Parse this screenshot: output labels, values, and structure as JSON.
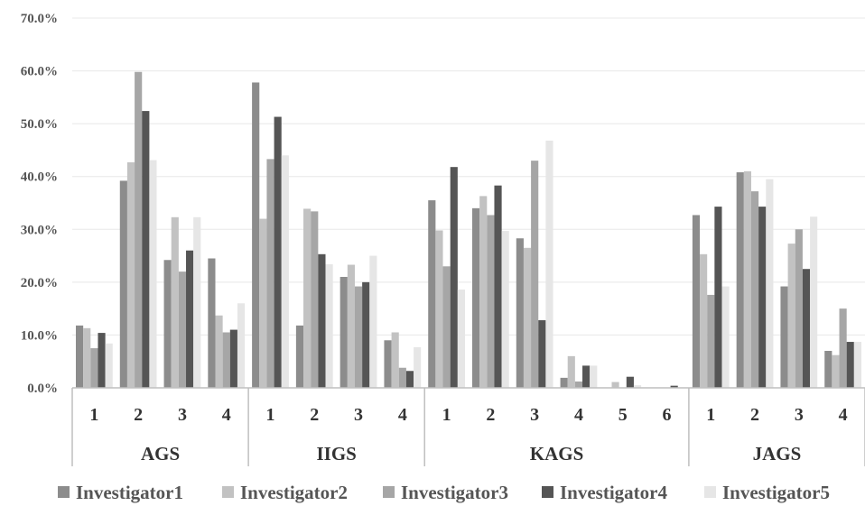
{
  "chart_data": {
    "type": "bar",
    "title": "",
    "xlabel": "",
    "ylabel": "",
    "ylim": [
      0,
      70
    ],
    "y_ticks": [
      "0.0%",
      "10.0%",
      "20.0%",
      "30.0%",
      "40.0%",
      "50.0%",
      "60.0%",
      "70.0%"
    ],
    "grid": true,
    "legend_position": "bottom",
    "groups": [
      {
        "label": "AGS",
        "categories": [
          "1",
          "2",
          "3",
          "4"
        ]
      },
      {
        "label": "IIGS",
        "categories": [
          "1",
          "2",
          "3",
          "4"
        ]
      },
      {
        "label": "KAGS",
        "categories": [
          "1",
          "2",
          "3",
          "4",
          "5",
          "6"
        ]
      },
      {
        "label": "JAGS",
        "categories": [
          "1",
          "2",
          "3",
          "4"
        ]
      }
    ],
    "series": [
      {
        "name": "Investigator1",
        "color": "#8c8c8c",
        "values": [
          11.8,
          39.2,
          24.2,
          24.5,
          57.8,
          11.8,
          21.0,
          9.0,
          35.5,
          34.0,
          28.3,
          1.9,
          0.0,
          0.0,
          32.7,
          40.8,
          19.2,
          7.0
        ]
      },
      {
        "name": "Investigator2",
        "color": "#c2c2c2",
        "values": [
          11.3,
          42.7,
          32.3,
          13.7,
          32.0,
          33.9,
          23.3,
          10.5,
          29.8,
          36.3,
          26.5,
          6.0,
          1.1,
          0.0,
          25.3,
          41.0,
          27.3,
          6.2
        ]
      },
      {
        "name": "Investigator3",
        "color": "#a6a6a6",
        "values": [
          7.5,
          59.8,
          22.0,
          10.5,
          43.3,
          33.4,
          19.2,
          3.8,
          23.0,
          32.7,
          43.0,
          1.2,
          0.0,
          0.0,
          17.6,
          37.2,
          30.0,
          15.0
        ]
      },
      {
        "name": "Investigator4",
        "color": "#555555",
        "values": [
          10.4,
          52.4,
          26.0,
          11.0,
          51.3,
          25.3,
          20.0,
          3.2,
          41.8,
          38.3,
          12.8,
          4.2,
          2.1,
          0.4,
          34.3,
          34.3,
          22.5,
          8.7
        ]
      },
      {
        "name": "Investigator5",
        "color": "#e6e6e6",
        "values": [
          8.4,
          43.1,
          32.3,
          16.0,
          44.0,
          23.4,
          25.0,
          7.7,
          18.6,
          29.7,
          46.8,
          4.2,
          0.5,
          0.0,
          19.2,
          39.5,
          32.4,
          8.7
        ]
      }
    ]
  }
}
